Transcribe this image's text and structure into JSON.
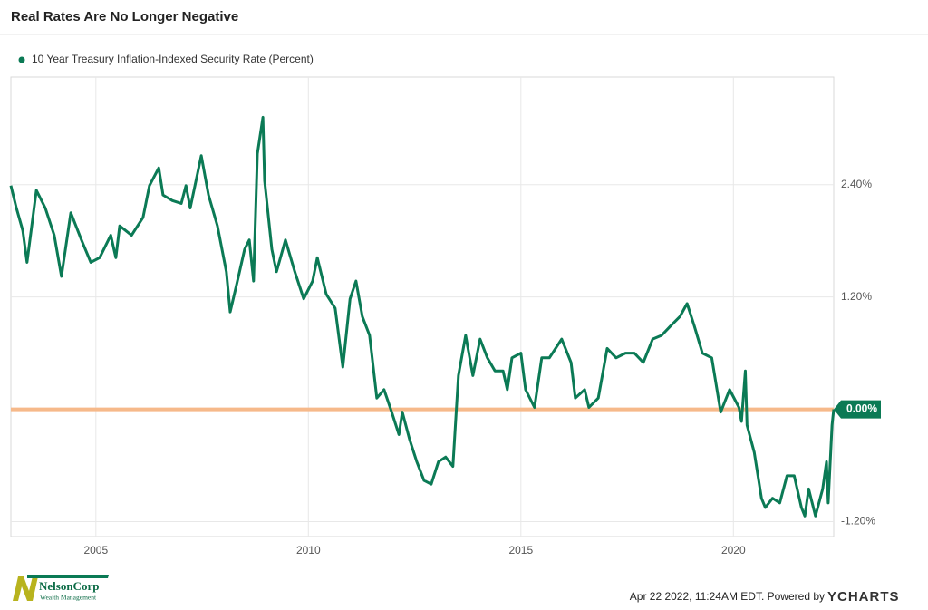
{
  "chart_data": {
    "type": "line",
    "title": "Real Rates Are No Longer Negative",
    "xlim": [
      2003.0,
      2022.36
    ],
    "xticks": [
      2005,
      2010,
      2015,
      2020
    ],
    "ylim": [
      -1.36,
      3.55
    ],
    "yticks": [
      {
        "value": -1.2,
        "label": "-1.20%"
      },
      {
        "value": 0,
        "label": "0.00%"
      },
      {
        "value": 1.2,
        "label": "1.20%"
      },
      {
        "value": 2.4,
        "label": "2.40%"
      }
    ],
    "grid": true,
    "reference_line": {
      "value": 0,
      "color": "#f6b98a"
    },
    "series": [
      {
        "name": "10 Year Treasury Inflation-Indexed Security Rate (Percent)",
        "color": "#0b7a55",
        "end_label": "0.00%",
        "x": [
          2003.0,
          2003.13,
          2003.28,
          2003.38,
          2003.6,
          2003.81,
          2004.02,
          2004.19,
          2004.41,
          2004.66,
          2004.88,
          2005.09,
          2005.35,
          2005.47,
          2005.56,
          2005.84,
          2006.11,
          2006.26,
          2006.48,
          2006.58,
          2006.8,
          2007.01,
          2007.12,
          2007.22,
          2007.48,
          2007.65,
          2007.86,
          2008.07,
          2008.16,
          2008.33,
          2008.5,
          2008.61,
          2008.71,
          2008.8,
          2008.93,
          2008.97,
          2009.14,
          2009.25,
          2009.46,
          2009.68,
          2009.89,
          2010.1,
          2010.21,
          2010.42,
          2010.63,
          2010.81,
          2010.98,
          2011.12,
          2011.27,
          2011.44,
          2011.61,
          2011.78,
          2011.96,
          2012.13,
          2012.21,
          2012.38,
          2012.55,
          2012.72,
          2012.89,
          2013.06,
          2013.23,
          2013.4,
          2013.53,
          2013.7,
          2013.87,
          2014.04,
          2014.21,
          2014.39,
          2014.58,
          2014.68,
          2014.79,
          2015.0,
          2015.11,
          2015.32,
          2015.49,
          2015.67,
          2015.96,
          2016.18,
          2016.28,
          2016.5,
          2016.6,
          2016.82,
          2017.03,
          2017.24,
          2017.46,
          2017.67,
          2017.88,
          2018.1,
          2018.31,
          2018.52,
          2018.74,
          2018.91,
          2019.08,
          2019.27,
          2019.49,
          2019.7,
          2019.91,
          2020.13,
          2020.19,
          2020.28,
          2020.32,
          2020.49,
          2020.66,
          2020.75,
          2020.92,
          2021.09,
          2021.26,
          2021.43,
          2021.6,
          2021.68,
          2021.77,
          2021.93,
          2022.1,
          2022.19,
          2022.23,
          2022.32,
          2022.36
        ],
        "values": [
          2.39,
          2.15,
          1.91,
          1.57,
          2.34,
          2.15,
          1.86,
          1.42,
          2.1,
          1.81,
          1.57,
          1.62,
          1.86,
          1.62,
          1.96,
          1.86,
          2.05,
          2.39,
          2.58,
          2.29,
          2.23,
          2.2,
          2.39,
          2.15,
          2.71,
          2.29,
          1.96,
          1.47,
          1.04,
          1.37,
          1.71,
          1.81,
          1.37,
          2.73,
          3.12,
          2.44,
          1.71,
          1.47,
          1.81,
          1.47,
          1.18,
          1.37,
          1.62,
          1.23,
          1.08,
          0.45,
          1.18,
          1.37,
          0.99,
          0.79,
          0.12,
          0.21,
          -0.03,
          -0.27,
          -0.03,
          -0.32,
          -0.56,
          -0.76,
          -0.8,
          -0.56,
          -0.51,
          -0.61,
          0.36,
          0.79,
          0.36,
          0.75,
          0.55,
          0.41,
          0.41,
          0.21,
          0.55,
          0.6,
          0.21,
          0.02,
          0.55,
          0.55,
          0.75,
          0.5,
          0.12,
          0.21,
          0.02,
          0.12,
          0.65,
          0.55,
          0.6,
          0.6,
          0.5,
          0.75,
          0.79,
          0.89,
          0.99,
          1.13,
          0.89,
          0.6,
          0.55,
          -0.03,
          0.21,
          0.02,
          -0.13,
          0.41,
          -0.17,
          -0.46,
          -0.95,
          -1.05,
          -0.95,
          -1.0,
          -0.71,
          -0.71,
          -1.05,
          -1.14,
          -0.85,
          -1.14,
          -0.85,
          -0.56,
          -1.0,
          -0.17,
          0.0
        ]
      }
    ]
  },
  "footer": {
    "logo_name": "NelsonCorp",
    "logo_sub": "Wealth Management",
    "timestamp": "Apr 22 2022, 11:24AM EDT.  Powered by",
    "brand": "YCHARTS"
  }
}
